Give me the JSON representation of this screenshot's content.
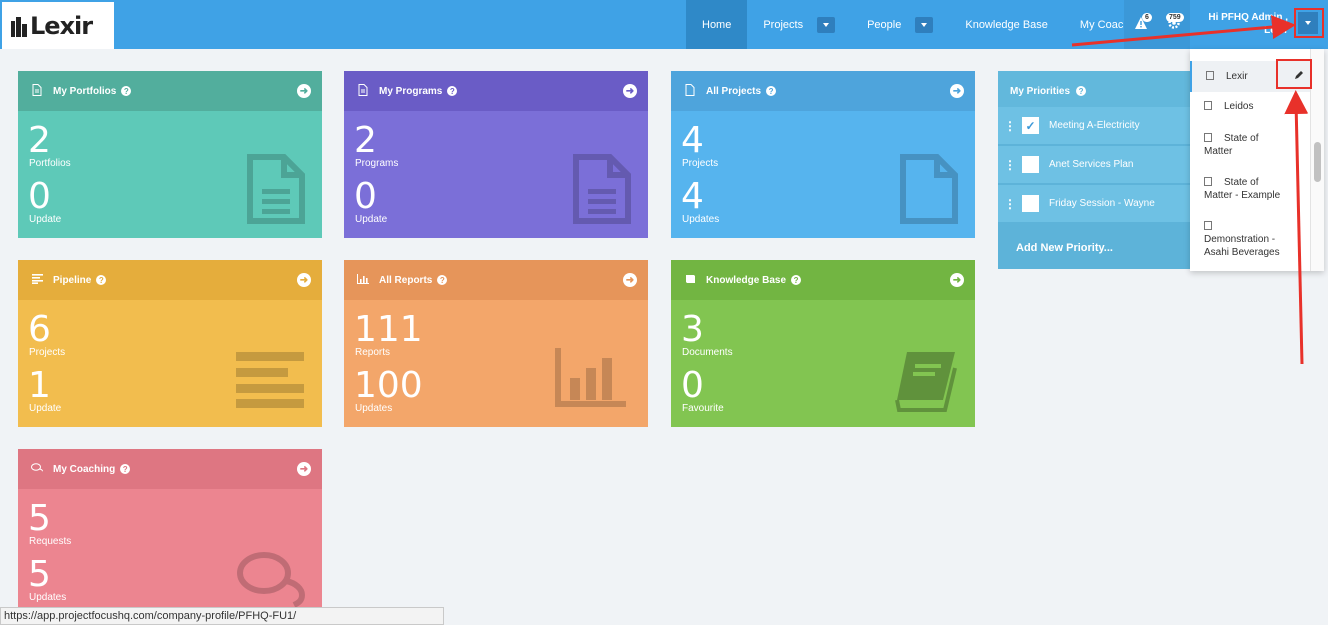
{
  "header": {
    "logo_text": "Lexir",
    "nav": [
      {
        "label": "Home",
        "active": true,
        "caret": false
      },
      {
        "label": "Projects",
        "active": false,
        "caret": true
      },
      {
        "label": "People",
        "active": false,
        "caret": true
      },
      {
        "label": "Knowledge Base",
        "active": false,
        "caret": false
      },
      {
        "label": "My Coaching",
        "active": false,
        "caret": false
      }
    ],
    "alert_count": "6",
    "notification_count": "759",
    "greeting_line1": "Hi PFHQ Admin ,",
    "greeting_line2": "Lexir"
  },
  "cards": {
    "portfolios": {
      "title": "My Portfolios",
      "num1": "2",
      "lbl1": "Portfolios",
      "num2": "0",
      "lbl2": "Update",
      "color": "#5ec9b8",
      "head_color": "#52ae9d",
      "icon": "document-icon"
    },
    "programs": {
      "title": "My Programs",
      "num1": "2",
      "lbl1": "Programs",
      "num2": "0",
      "lbl2": "Update",
      "color": "#7b6fd8",
      "head_color": "#6a5cc6",
      "icon": "document-icon"
    },
    "projects": {
      "title": "All Projects",
      "num1": "4",
      "lbl1": "Projects",
      "num2": "4",
      "lbl2": "Updates",
      "color": "#56b4ee",
      "head_color": "#4ea4dc",
      "icon": "file-icon"
    },
    "pipeline": {
      "title": "Pipeline",
      "num1": "6",
      "lbl1": "Projects",
      "num2": "1",
      "lbl2": "Update",
      "color": "#f2bd4e",
      "head_color": "#e5ad3c",
      "icon": "list-icon"
    },
    "reports": {
      "title": "All Reports",
      "num1": "111",
      "lbl1": "Reports",
      "num2": "100",
      "lbl2": "Updates",
      "color": "#f3a66a",
      "head_color": "#e6955a",
      "icon": "bar-chart-icon"
    },
    "knowledge": {
      "title": "Knowledge Base",
      "num1": "3",
      "lbl1": "Documents",
      "num2": "0",
      "lbl2": "Favourite",
      "color": "#82c551",
      "head_color": "#72b542",
      "icon": "book-icon"
    },
    "coaching": {
      "title": "My Coaching",
      "num1": "5",
      "lbl1": "Requests",
      "num2": "5",
      "lbl2": "Updates",
      "color": "#ec8590",
      "head_color": "#de7682",
      "icon": "comments-icon"
    }
  },
  "priorities": {
    "title": "My Priorities",
    "items": [
      {
        "label": "Meeting A-Electricity",
        "checked": true
      },
      {
        "label": "Anet Services Plan",
        "checked": false
      },
      {
        "label": "Friday Session - Wayne",
        "checked": false
      }
    ],
    "add_label": "Add New Priority..."
  },
  "company_menu": {
    "items": [
      {
        "line1": "Lexir",
        "line2": "",
        "active": true
      },
      {
        "line1": "Leidos",
        "line2": "",
        "active": false
      },
      {
        "line1": "State of",
        "line2": "Matter",
        "active": false
      },
      {
        "line1": "State of",
        "line2": "Matter - Example",
        "active": false
      },
      {
        "line1": "Demonstration -",
        "line2": "Asahi Beverages",
        "active": false
      }
    ]
  },
  "status_url": "https://app.projectfocushq.com/company-profile/PFHQ-FU1/",
  "annotation_color": "#e8312a"
}
